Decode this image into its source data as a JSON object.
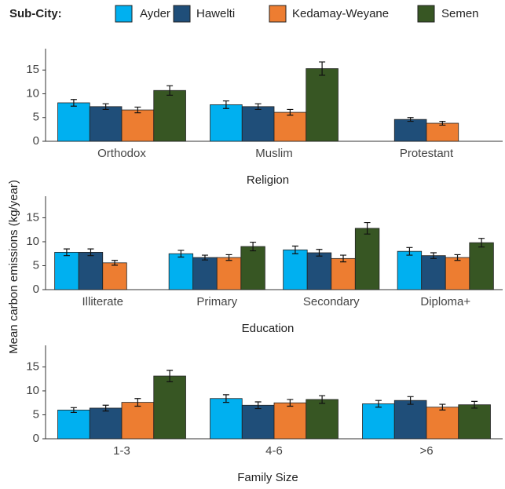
{
  "chart_data": [
    {
      "type": "bar",
      "legend_title": "Sub-City:",
      "ylabel": "Mean carbon emissions (kg/year)",
      "xlabel": "Religion",
      "categories": [
        "Orthodox",
        "Muslim",
        "Protestant"
      ],
      "series": [
        {
          "name": "Ayder",
          "color": "#00b0f0",
          "values": [
            8.1,
            7.7,
            null
          ],
          "errors": [
            0.7,
            0.8,
            null
          ]
        },
        {
          "name": "Hawelti",
          "color": "#1f4e79",
          "values": [
            7.3,
            7.3,
            4.6
          ],
          "errors": [
            0.6,
            0.6,
            0.4
          ]
        },
        {
          "name": "Kedamay-Weyane",
          "color": "#ed7d31",
          "values": [
            6.6,
            6.1,
            3.8
          ],
          "errors": [
            0.6,
            0.6,
            0.4
          ]
        },
        {
          "name": "Semen",
          "color": "#375623",
          "values": [
            10.7,
            15.3,
            null
          ],
          "errors": [
            1.0,
            1.4,
            null
          ]
        }
      ],
      "ylim": [
        0,
        19.5
      ],
      "yticks": [
        0,
        5,
        10,
        15
      ],
      "grid": false
    },
    {
      "type": "bar",
      "xlabel": "Education",
      "categories": [
        "Illiterate",
        "Primary",
        "Secondary",
        "Diploma+"
      ],
      "series": [
        {
          "name": "Ayder",
          "color": "#00b0f0",
          "values": [
            7.8,
            7.5,
            8.3,
            8.0
          ],
          "errors": [
            0.7,
            0.7,
            0.8,
            0.8
          ]
        },
        {
          "name": "Hawelti",
          "color": "#1f4e79",
          "values": [
            7.8,
            6.7,
            7.7,
            7.1
          ],
          "errors": [
            0.7,
            0.5,
            0.7,
            0.6
          ]
        },
        {
          "name": "Kedamay-Weyane",
          "color": "#ed7d31",
          "values": [
            5.6,
            6.7,
            6.5,
            6.7
          ],
          "errors": [
            0.5,
            0.6,
            0.7,
            0.6
          ]
        },
        {
          "name": "Semen",
          "color": "#375623",
          "values": [
            null,
            9.0,
            12.8,
            9.8
          ],
          "errors": [
            null,
            0.9,
            1.2,
            0.9
          ]
        }
      ],
      "ylim": [
        0,
        19.5
      ],
      "yticks": [
        0,
        5,
        10,
        15
      ],
      "grid": false
    },
    {
      "type": "bar",
      "xlabel": "Family Size",
      "categories": [
        "1-3",
        "4-6",
        ">6"
      ],
      "series": [
        {
          "name": "Ayder",
          "color": "#00b0f0",
          "values": [
            6.0,
            8.4,
            7.3
          ],
          "errors": [
            0.5,
            0.8,
            0.7
          ]
        },
        {
          "name": "Hawelti",
          "color": "#1f4e79",
          "values": [
            6.4,
            7.0,
            8.0
          ],
          "errors": [
            0.6,
            0.7,
            0.8
          ]
        },
        {
          "name": "Kedamay-Weyane",
          "color": "#ed7d31",
          "values": [
            7.6,
            7.5,
            6.6
          ],
          "errors": [
            0.8,
            0.7,
            0.6
          ]
        },
        {
          "name": "Semen",
          "color": "#375623",
          "values": [
            13.1,
            8.2,
            7.1
          ],
          "errors": [
            1.2,
            0.8,
            0.7
          ]
        }
      ],
      "ylim": [
        0,
        19.5
      ],
      "yticks": [
        0,
        5,
        10,
        15
      ],
      "grid": false
    }
  ]
}
